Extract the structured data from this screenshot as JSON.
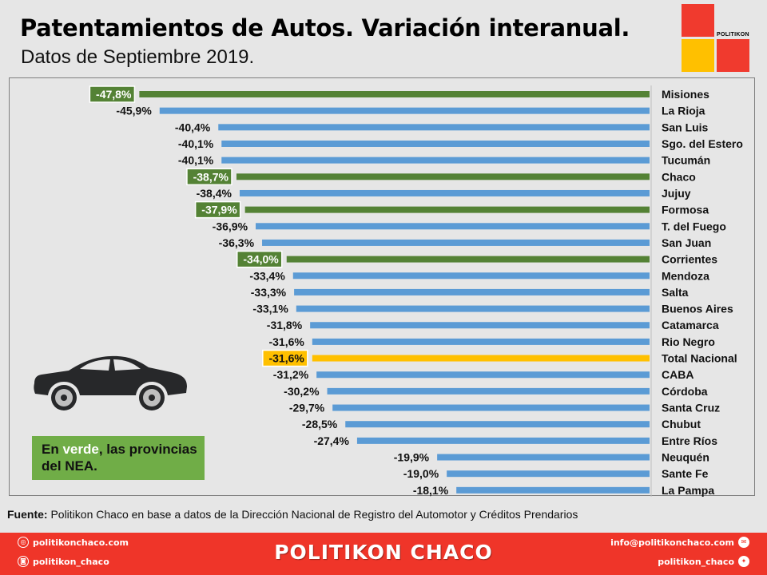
{
  "header": {
    "title": "Patentamientos de Autos. Variación interanual.",
    "subtitle": "Datos de Septiembre 2019.",
    "logo_text": "POLITIKON"
  },
  "legend": {
    "prefix": "En ",
    "highlight": "verde",
    "suffix": ", las provincias del NEA."
  },
  "source": {
    "label": "Fuente:",
    "text": " Politikon Chaco en base a datos de la Dirección Nacional de Registro del Automotor  y Créditos Prendarios"
  },
  "footer": {
    "brand": "POLITIKON CHACO",
    "website": "politikonchaco.com",
    "instagram": "politikon_chaco",
    "email": "info@politikonchaco.com",
    "twitter": "politikon_chaco"
  },
  "colors": {
    "default_bar": "#5b9bd5",
    "nea_bar": "#548235",
    "total_bar": "#ffc000",
    "brand_red": "#ef3529",
    "legend_green": "#70ad47"
  },
  "chart_data": {
    "type": "bar",
    "orientation": "horizontal",
    "title": "Patentamientos de Autos. Variación interanual.",
    "subtitle": "Datos de Septiembre 2019.",
    "xlabel": "",
    "ylabel": "",
    "unit": "%",
    "grid": false,
    "categories": [
      "Misiones",
      "La Rioja",
      "San Luis",
      "Sgo. del Estero",
      "Tucumán",
      "Chaco",
      "Jujuy",
      "Formosa",
      "T. del Fuego",
      "San Juan",
      "Corrientes",
      "Mendoza",
      "Salta",
      "Buenos Aires",
      "Catamarca",
      "Rio Negro",
      "Total Nacional",
      "CABA",
      "Córdoba",
      "Santa Cruz",
      "Chubut",
      "Entre Ríos",
      "Neuquén",
      "Sante Fe",
      "La Pampa"
    ],
    "values": [
      -47.8,
      -45.9,
      -40.4,
      -40.1,
      -40.1,
      -38.7,
      -38.4,
      -37.9,
      -36.9,
      -36.3,
      -34.0,
      -33.4,
      -33.3,
      -33.1,
      -31.8,
      -31.6,
      -31.6,
      -31.2,
      -30.2,
      -29.7,
      -28.5,
      -27.4,
      -19.9,
      -19.0,
      -18.1
    ],
    "labels": [
      "-47,8%",
      "-45,9%",
      "-40,4%",
      "-40,1%",
      "-40,1%",
      "-38,7%",
      "-38,4%",
      "-37,9%",
      "-36,9%",
      "-36,3%",
      "-34,0%",
      "-33,4%",
      "-33,3%",
      "-33,1%",
      "-31,8%",
      "-31,6%",
      "-31,6%",
      "-31,2%",
      "-30,2%",
      "-29,7%",
      "-28,5%",
      "-27,4%",
      "-19,9%",
      "-19,0%",
      "-18,1%"
    ],
    "groups": [
      "nea",
      "other",
      "other",
      "other",
      "other",
      "nea",
      "other",
      "nea",
      "other",
      "other",
      "nea",
      "other",
      "other",
      "other",
      "other",
      "other",
      "total",
      "other",
      "other",
      "other",
      "other",
      "other",
      "other",
      "other",
      "other"
    ],
    "xlim": [
      -50,
      0
    ]
  }
}
